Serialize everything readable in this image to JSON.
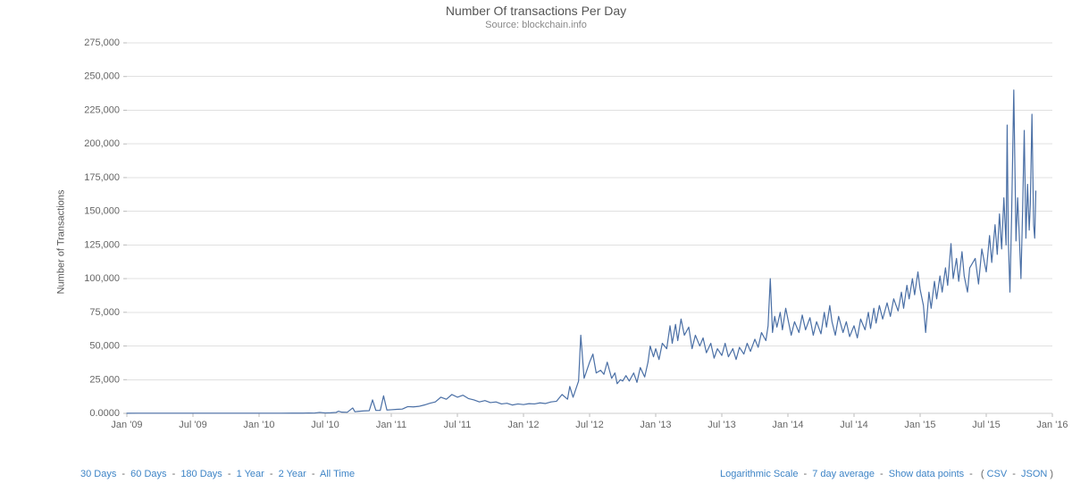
{
  "chart": {
    "type": "line",
    "title": "Number Of transactions Per Day",
    "subtitle": "Source: blockchain.info",
    "y_axis_label": "Number of Transactions",
    "line_color": "#4A6FA5",
    "line_width": 1.2,
    "grid_color": "#e0e0e0",
    "background_color": "#ffffff",
    "title_fontsize": 14,
    "label_fontsize": 11,
    "ylim": [
      0,
      275000
    ],
    "yticks": [
      {
        "v": 0,
        "label": "0.0000"
      },
      {
        "v": 25000,
        "label": "25,000"
      },
      {
        "v": 50000,
        "label": "50,000"
      },
      {
        "v": 75000,
        "label": "75,000"
      },
      {
        "v": 100000,
        "label": "100,000"
      },
      {
        "v": 125000,
        "label": "125,000"
      },
      {
        "v": 150000,
        "label": "150,000"
      },
      {
        "v": 175000,
        "label": "175,000"
      },
      {
        "v": 200000,
        "label": "200,000"
      },
      {
        "v": 225000,
        "label": "225,000"
      },
      {
        "v": 250000,
        "label": "250,000"
      },
      {
        "v": 275000,
        "label": "275,000"
      }
    ],
    "xlim": [
      0,
      84
    ],
    "xticks": [
      {
        "v": 0,
        "label": "Jan '09"
      },
      {
        "v": 6,
        "label": "Jul '09"
      },
      {
        "v": 12,
        "label": "Jan '10"
      },
      {
        "v": 18,
        "label": "Jul '10"
      },
      {
        "v": 24,
        "label": "Jan '11"
      },
      {
        "v": 30,
        "label": "Jul '11"
      },
      {
        "v": 36,
        "label": "Jan '12"
      },
      {
        "v": 42,
        "label": "Jul '12"
      },
      {
        "v": 48,
        "label": "Jan '13"
      },
      {
        "v": 54,
        "label": "Jul '13"
      },
      {
        "v": 60,
        "label": "Jan '14"
      },
      {
        "v": 66,
        "label": "Jul '14"
      },
      {
        "v": 72,
        "label": "Jan '15"
      },
      {
        "v": 78,
        "label": "Jul '15"
      },
      {
        "v": 84,
        "label": "Jan '16"
      }
    ],
    "series": [
      [
        0,
        100
      ],
      [
        1,
        110
      ],
      [
        2,
        110
      ],
      [
        3,
        110
      ],
      [
        4,
        110
      ],
      [
        5,
        120
      ],
      [
        6,
        120
      ],
      [
        7,
        125
      ],
      [
        8,
        130
      ],
      [
        9,
        135
      ],
      [
        10,
        135
      ],
      [
        11,
        135
      ],
      [
        12,
        140
      ],
      [
        13,
        140
      ],
      [
        14,
        140
      ],
      [
        15,
        160
      ],
      [
        16,
        180
      ],
      [
        16.5,
        300
      ],
      [
        17,
        200
      ],
      [
        17.5,
        700
      ],
      [
        18,
        300
      ],
      [
        18.5,
        400
      ],
      [
        19,
        700
      ],
      [
        19.2,
        1600
      ],
      [
        19.5,
        900
      ],
      [
        20,
        800
      ],
      [
        20.5,
        4000
      ],
      [
        20.7,
        1200
      ],
      [
        21,
        1500
      ],
      [
        21.5,
        1800
      ],
      [
        22,
        2000
      ],
      [
        22.3,
        10000
      ],
      [
        22.6,
        2200
      ],
      [
        23,
        2200
      ],
      [
        23.3,
        13000
      ],
      [
        23.6,
        2500
      ],
      [
        24,
        2700
      ],
      [
        24.5,
        3000
      ],
      [
        25,
        3200
      ],
      [
        25.5,
        5000
      ],
      [
        26,
        4800
      ],
      [
        26.5,
        5200
      ],
      [
        27,
        6200
      ],
      [
        27.5,
        7500
      ],
      [
        28,
        8500
      ],
      [
        28.5,
        12000
      ],
      [
        29,
        10500
      ],
      [
        29.5,
        14000
      ],
      [
        30,
        12000
      ],
      [
        30.5,
        13500
      ],
      [
        31,
        11000
      ],
      [
        31.5,
        10000
      ],
      [
        32,
        8500
      ],
      [
        32.5,
        9500
      ],
      [
        33,
        8000
      ],
      [
        33.5,
        8500
      ],
      [
        34,
        7000
      ],
      [
        34.5,
        7500
      ],
      [
        35,
        6200
      ],
      [
        35.5,
        7000
      ],
      [
        36,
        6500
      ],
      [
        36.5,
        7200
      ],
      [
        37,
        7000
      ],
      [
        37.5,
        7800
      ],
      [
        38,
        7300
      ],
      [
        38.5,
        8500
      ],
      [
        39,
        9000
      ],
      [
        39.5,
        14000
      ],
      [
        40,
        10500
      ],
      [
        40.2,
        20000
      ],
      [
        40.5,
        12000
      ],
      [
        41,
        24000
      ],
      [
        41.2,
        58000
      ],
      [
        41.5,
        26000
      ],
      [
        42,
        38000
      ],
      [
        42.3,
        44000
      ],
      [
        42.6,
        30000
      ],
      [
        43,
        32000
      ],
      [
        43.3,
        29000
      ],
      [
        43.6,
        38000
      ],
      [
        44,
        26000
      ],
      [
        44.3,
        30000
      ],
      [
        44.5,
        22000
      ],
      [
        44.8,
        25000
      ],
      [
        45,
        24000
      ],
      [
        45.3,
        28000
      ],
      [
        45.6,
        24000
      ],
      [
        46,
        30000
      ],
      [
        46.3,
        23000
      ],
      [
        46.6,
        34000
      ],
      [
        47,
        27000
      ],
      [
        47.3,
        38000
      ],
      [
        47.5,
        50000
      ],
      [
        47.8,
        42000
      ],
      [
        48,
        48000
      ],
      [
        48.3,
        40000
      ],
      [
        48.6,
        52000
      ],
      [
        49,
        48000
      ],
      [
        49.3,
        65000
      ],
      [
        49.5,
        52000
      ],
      [
        49.8,
        66000
      ],
      [
        50,
        54000
      ],
      [
        50.3,
        70000
      ],
      [
        50.6,
        58000
      ],
      [
        51,
        64000
      ],
      [
        51.3,
        48000
      ],
      [
        51.6,
        58000
      ],
      [
        52,
        50000
      ],
      [
        52.3,
        56000
      ],
      [
        52.6,
        45000
      ],
      [
        53,
        52000
      ],
      [
        53.3,
        41000
      ],
      [
        53.6,
        48000
      ],
      [
        54,
        43000
      ],
      [
        54.3,
        52000
      ],
      [
        54.6,
        42000
      ],
      [
        55,
        48000
      ],
      [
        55.3,
        40000
      ],
      [
        55.6,
        49000
      ],
      [
        56,
        44000
      ],
      [
        56.3,
        52000
      ],
      [
        56.6,
        46000
      ],
      [
        57,
        55000
      ],
      [
        57.3,
        49000
      ],
      [
        57.6,
        60000
      ],
      [
        58,
        54000
      ],
      [
        58.2,
        65000
      ],
      [
        58.4,
        100000
      ],
      [
        58.6,
        60000
      ],
      [
        58.8,
        72000
      ],
      [
        59,
        64000
      ],
      [
        59.3,
        75000
      ],
      [
        59.5,
        62000
      ],
      [
        59.8,
        78000
      ],
      [
        60,
        70000
      ],
      [
        60.3,
        58000
      ],
      [
        60.6,
        68000
      ],
      [
        61,
        60000
      ],
      [
        61.3,
        73000
      ],
      [
        61.6,
        62000
      ],
      [
        62,
        71000
      ],
      [
        62.3,
        58000
      ],
      [
        62.6,
        68000
      ],
      [
        63,
        59000
      ],
      [
        63.3,
        75000
      ],
      [
        63.5,
        64000
      ],
      [
        63.8,
        80000
      ],
      [
        64,
        68000
      ],
      [
        64.3,
        58000
      ],
      [
        64.6,
        72000
      ],
      [
        65,
        60000
      ],
      [
        65.3,
        68000
      ],
      [
        65.6,
        57000
      ],
      [
        66,
        65000
      ],
      [
        66.3,
        56000
      ],
      [
        66.6,
        70000
      ],
      [
        67,
        62000
      ],
      [
        67.3,
        75000
      ],
      [
        67.5,
        63000
      ],
      [
        67.8,
        78000
      ],
      [
        68,
        67000
      ],
      [
        68.3,
        80000
      ],
      [
        68.6,
        70000
      ],
      [
        69,
        82000
      ],
      [
        69.3,
        72000
      ],
      [
        69.6,
        85000
      ],
      [
        70,
        76000
      ],
      [
        70.3,
        90000
      ],
      [
        70.5,
        78000
      ],
      [
        70.8,
        95000
      ],
      [
        71,
        85000
      ],
      [
        71.3,
        100000
      ],
      [
        71.5,
        88000
      ],
      [
        71.8,
        105000
      ],
      [
        72,
        92000
      ],
      [
        72.3,
        80000
      ],
      [
        72.5,
        60000
      ],
      [
        72.8,
        90000
      ],
      [
        73,
        78000
      ],
      [
        73.3,
        98000
      ],
      [
        73.5,
        85000
      ],
      [
        73.8,
        102000
      ],
      [
        74,
        90000
      ],
      [
        74.3,
        108000
      ],
      [
        74.5,
        95000
      ],
      [
        74.8,
        126000
      ],
      [
        75,
        100000
      ],
      [
        75.3,
        115000
      ],
      [
        75.5,
        98000
      ],
      [
        75.8,
        120000
      ],
      [
        76,
        102000
      ],
      [
        76.3,
        90000
      ],
      [
        76.5,
        108000
      ],
      [
        77,
        115000
      ],
      [
        77.3,
        96000
      ],
      [
        77.6,
        122000
      ],
      [
        78,
        105000
      ],
      [
        78.3,
        132000
      ],
      [
        78.5,
        112000
      ],
      [
        78.8,
        140000
      ],
      [
        79,
        118000
      ],
      [
        79.2,
        148000
      ],
      [
        79.4,
        122000
      ],
      [
        79.6,
        160000
      ],
      [
        79.8,
        125000
      ],
      [
        79.9,
        214000
      ],
      [
        80,
        130000
      ],
      [
        80.15,
        90000
      ],
      [
        80.3,
        145000
      ],
      [
        80.5,
        240000
      ],
      [
        80.7,
        128000
      ],
      [
        80.85,
        160000
      ],
      [
        81,
        132000
      ],
      [
        81.15,
        100000
      ],
      [
        81.3,
        150000
      ],
      [
        81.45,
        210000
      ],
      [
        81.6,
        130000
      ],
      [
        81.75,
        170000
      ],
      [
        81.9,
        136000
      ],
      [
        82,
        155000
      ],
      [
        82.15,
        222000
      ],
      [
        82.3,
        140000
      ],
      [
        82.4,
        130000
      ],
      [
        82.5,
        165000
      ]
    ]
  },
  "range_links": {
    "items": [
      "30 Days",
      "60 Days",
      "180 Days",
      "1 Year",
      "2 Year",
      "All Time"
    ],
    "separator": " - "
  },
  "option_links": {
    "logarithmic": "Logarithmic Scale",
    "avg7": "7 day average",
    "show_points": "Show data points",
    "csv": "CSV",
    "json": "JSON",
    "sep": " - ",
    "paren_open": "(",
    "paren_close": ")"
  }
}
